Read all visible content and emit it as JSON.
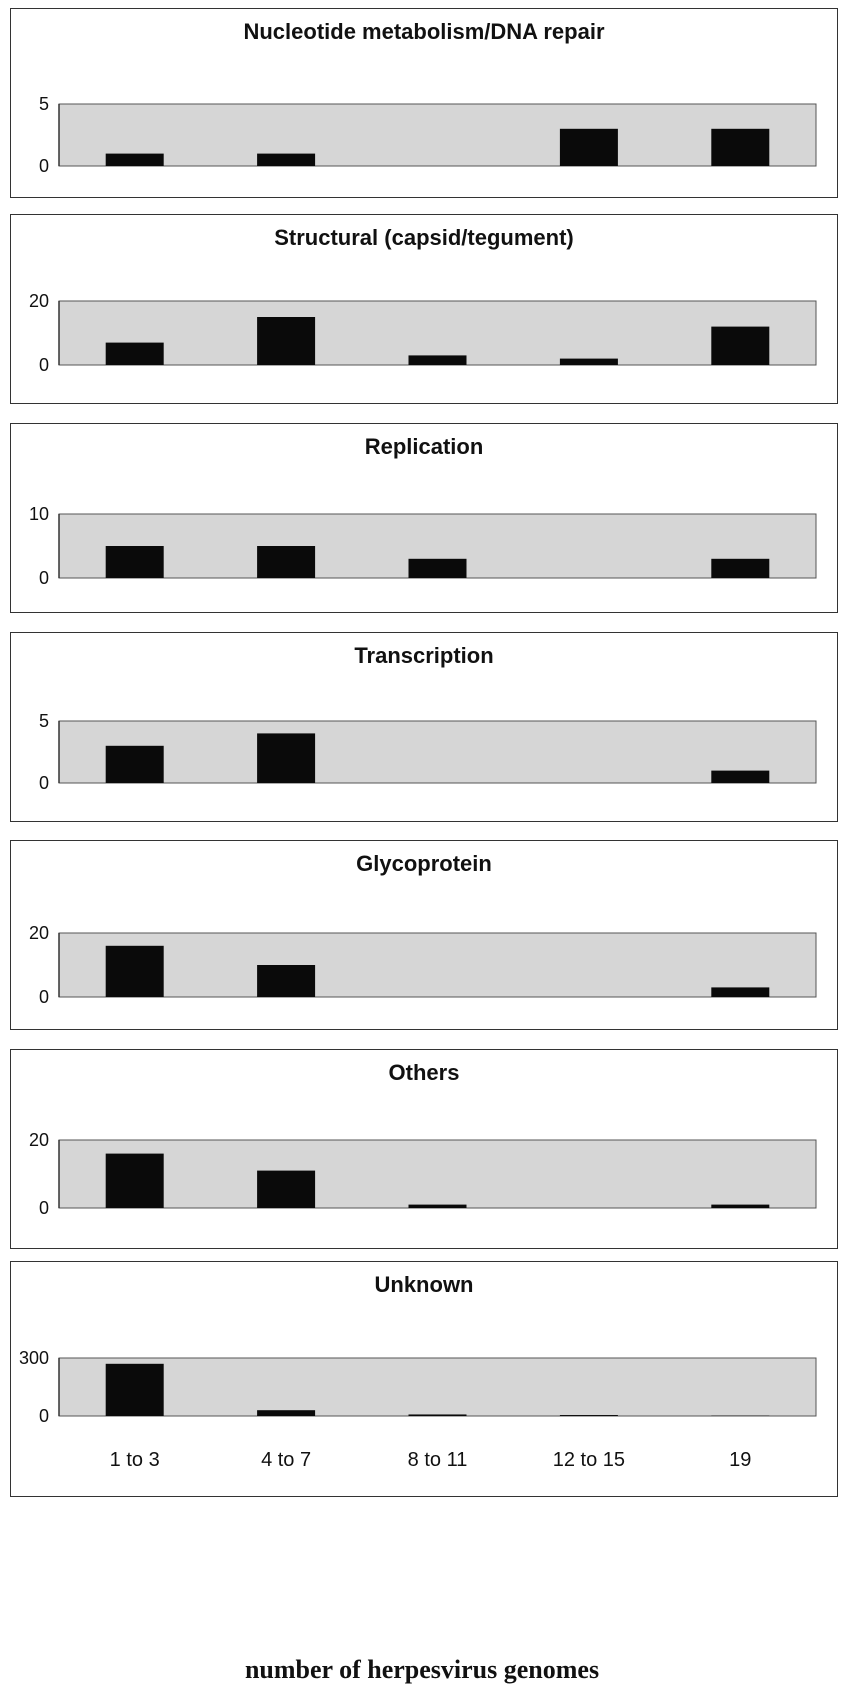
{
  "chart_data": [
    {
      "type": "bar",
      "title": "Nucleotide metabolism/DNA repair",
      "categories": [
        "1 to 3",
        "4 to 7",
        "8 to 11",
        "12 to 15",
        "19"
      ],
      "values": [
        1,
        1,
        0,
        3,
        3
      ],
      "yticks": [
        "0",
        "5"
      ],
      "ylim": [
        0,
        5
      ],
      "show_category_labels": false
    },
    {
      "type": "bar",
      "title": "Structural (capsid/tegument)",
      "categories": [
        "1 to 3",
        "4 to 7",
        "8 to 11",
        "12 to 15",
        "19"
      ],
      "values": [
        7,
        15,
        3,
        2,
        12
      ],
      "yticks": [
        "0",
        "20"
      ],
      "ylim": [
        0,
        20
      ],
      "show_category_labels": false
    },
    {
      "type": "bar",
      "title": "Replication",
      "categories": [
        "1 to 3",
        "4 to 7",
        "8 to 11",
        "12 to 15",
        "19"
      ],
      "values": [
        5,
        5,
        3,
        0,
        3
      ],
      "yticks": [
        "0",
        "10"
      ],
      "ylim": [
        0,
        10
      ],
      "show_category_labels": false
    },
    {
      "type": "bar",
      "title": "Transcription",
      "categories": [
        "1 to 3",
        "4 to 7",
        "8 to 11",
        "12 to 15",
        "19"
      ],
      "values": [
        3,
        4,
        0,
        0,
        1
      ],
      "yticks": [
        "0",
        "5"
      ],
      "ylim": [
        0,
        5
      ],
      "show_category_labels": false
    },
    {
      "type": "bar",
      "title": "Glycoprotein",
      "categories": [
        "1 to 3",
        "4 to 7",
        "8 to 11",
        "12 to 15",
        "19"
      ],
      "values": [
        16,
        10,
        0,
        0,
        3
      ],
      "yticks": [
        "0",
        "20"
      ],
      "ylim": [
        0,
        20
      ],
      "show_category_labels": false
    },
    {
      "type": "bar",
      "title": "Others",
      "categories": [
        "1 to 3",
        "4 to 7",
        "8 to 11",
        "12 to 15",
        "19"
      ],
      "values": [
        16,
        11,
        1,
        0,
        1
      ],
      "yticks": [
        "0",
        "20"
      ],
      "ylim": [
        0,
        20
      ],
      "show_category_labels": false
    },
    {
      "type": "bar",
      "title": "Unknown",
      "categories": [
        "1 to 3",
        "4 to 7",
        "8 to 11",
        "12 to 15",
        "19"
      ],
      "values": [
        270,
        30,
        8,
        5,
        2
      ],
      "yticks": [
        "0",
        "300"
      ],
      "ylim": [
        0,
        300
      ],
      "show_category_labels": true
    }
  ],
  "xlabel": "number of herpesvirus genomes",
  "colors": {
    "bar": "#0a0a0a",
    "plot_area": "#d6d6d6",
    "border": "#333333"
  }
}
